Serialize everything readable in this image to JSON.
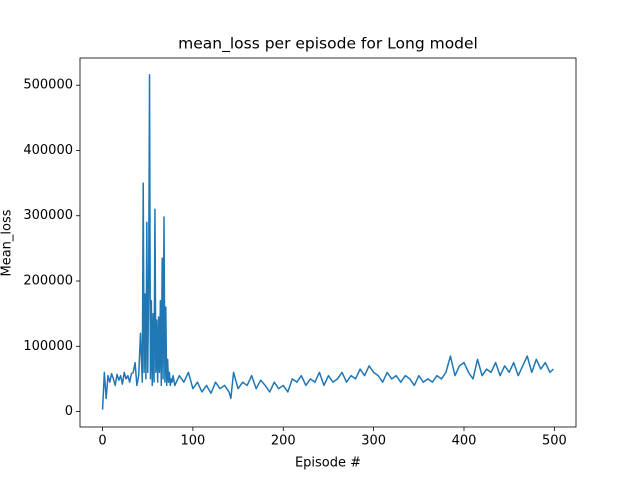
{
  "chart_data": {
    "type": "line",
    "title": "mean_loss per episode for Long model",
    "x_label": "Episode #",
    "y_label": "Mean_loss",
    "x": [
      0,
      2,
      4,
      6,
      8,
      10,
      12,
      14,
      16,
      18,
      20,
      22,
      24,
      26,
      28,
      30,
      32,
      34,
      36,
      38,
      40,
      42,
      44,
      45,
      46,
      47,
      48,
      49,
      50,
      51,
      52,
      53,
      54,
      55,
      56,
      57,
      58,
      59,
      60,
      61,
      62,
      63,
      64,
      65,
      66,
      67,
      68,
      69,
      70,
      71,
      72,
      73,
      74,
      75,
      76,
      77,
      78,
      80,
      85,
      90,
      95,
      100,
      105,
      110,
      115,
      120,
      125,
      130,
      135,
      140,
      142,
      145,
      150,
      155,
      160,
      165,
      170,
      175,
      180,
      185,
      190,
      195,
      200,
      205,
      210,
      215,
      220,
      225,
      230,
      235,
      240,
      245,
      250,
      255,
      260,
      265,
      270,
      275,
      280,
      285,
      290,
      295,
      300,
      305,
      310,
      315,
      320,
      325,
      330,
      335,
      340,
      345,
      350,
      355,
      360,
      365,
      370,
      375,
      380,
      385,
      390,
      395,
      400,
      405,
      410,
      415,
      420,
      425,
      430,
      435,
      440,
      445,
      450,
      455,
      460,
      465,
      470,
      475,
      480,
      485,
      490,
      495,
      499
    ],
    "series": [
      {
        "name": "mean_loss",
        "color": "#1f77b4",
        "values": [
          3000,
          60000,
          20000,
          55000,
          45000,
          58000,
          50000,
          40000,
          57000,
          48000,
          55000,
          42000,
          60000,
          50000,
          55000,
          45000,
          58000,
          60000,
          75000,
          40000,
          55000,
          120000,
          45000,
          350000,
          60000,
          180000,
          50000,
          290000,
          60000,
          180000,
          516000,
          50000,
          170000,
          40000,
          150000,
          45000,
          310000,
          60000,
          140000,
          45000,
          145000,
          60000,
          170000,
          40000,
          235000,
          50000,
          298000,
          45000,
          160000,
          40000,
          80000,
          45000,
          60000,
          40000,
          50000,
          45000,
          55000,
          40000,
          55000,
          45000,
          60000,
          35000,
          45000,
          30000,
          40000,
          28000,
          45000,
          35000,
          40000,
          30000,
          20000,
          60000,
          35000,
          45000,
          40000,
          55000,
          35000,
          48000,
          40000,
          30000,
          45000,
          35000,
          40000,
          30000,
          50000,
          45000,
          55000,
          40000,
          50000,
          45000,
          60000,
          40000,
          55000,
          45000,
          50000,
          60000,
          45000,
          55000,
          50000,
          65000,
          55000,
          70000,
          60000,
          55000,
          45000,
          60000,
          50000,
          55000,
          45000,
          55000,
          50000,
          40000,
          55000,
          45000,
          50000,
          45000,
          55000,
          50000,
          60000,
          85000,
          55000,
          70000,
          75000,
          60000,
          50000,
          80000,
          55000,
          65000,
          60000,
          75000,
          55000,
          70000,
          60000,
          75000,
          55000,
          70000,
          85000,
          60000,
          80000,
          65000,
          75000,
          60000,
          65000
        ]
      }
    ],
    "xlim": [
      -24.95,
      523.95
    ],
    "ylim": [
      -23700,
      541700
    ],
    "xticks": [
      0,
      100,
      200,
      300,
      400,
      500
    ],
    "yticks": [
      0,
      100000,
      200000,
      300000,
      400000,
      500000
    ],
    "grid": false
  }
}
